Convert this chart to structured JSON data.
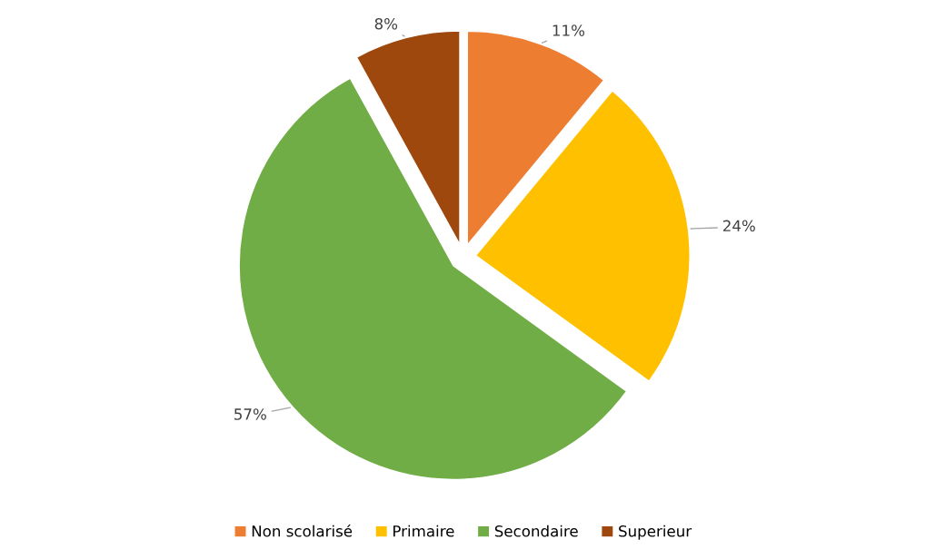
{
  "chart_data": {
    "type": "pie",
    "categories": [
      "Non scolarisé",
      "Primaire",
      "Secondaire",
      "Superieur"
    ],
    "values": [
      11,
      24,
      57,
      8
    ],
    "colors": [
      "#ed7d31",
      "#ffc000",
      "#70ad47",
      "#9e480e"
    ],
    "value_labels": [
      "11%",
      "24%",
      "57%",
      "8%"
    ],
    "legend": "bottom"
  }
}
